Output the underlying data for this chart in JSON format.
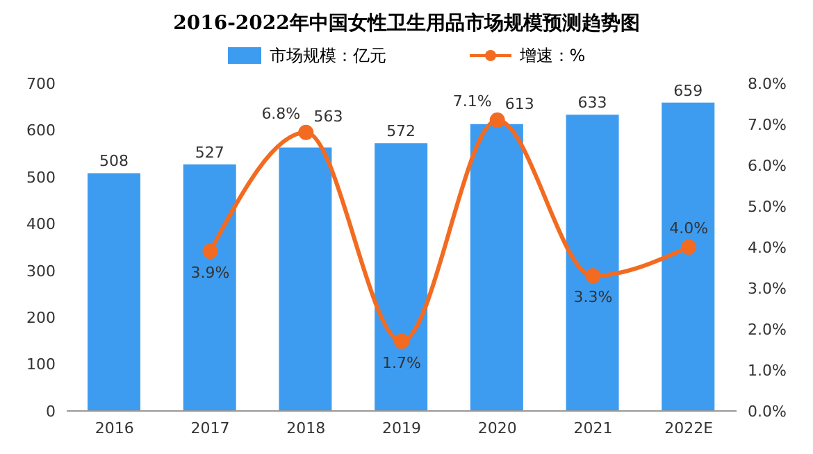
{
  "chart_data": {
    "type": "bar",
    "title": "2016-2022年中国女性卫生用品市场规模预测趋势图",
    "categories": [
      "2016",
      "2017",
      "2018",
      "2019",
      "2020",
      "2021",
      "2022E"
    ],
    "series": [
      {
        "name": "市场规模：亿元",
        "color": "#3d9cf0",
        "values": [
          508,
          527,
          563,
          572,
          613,
          633,
          659
        ],
        "value_labels": [
          "508",
          "527",
          "563",
          "572",
          "613",
          "633",
          "659"
        ]
      },
      {
        "name": "增速：%",
        "type": "line",
        "axis": "y2",
        "color": "#f26b21",
        "values": [
          null,
          3.9,
          6.8,
          1.7,
          7.1,
          3.3,
          4.0
        ],
        "value_labels": [
          null,
          "3.9%",
          "6.8%",
          "1.7%",
          "7.1%",
          "3.3%",
          "4.0%"
        ]
      }
    ],
    "ylim": [
      0,
      700
    ],
    "yticks": [
      0,
      100,
      200,
      300,
      400,
      500,
      600,
      700
    ],
    "y2lim": [
      0,
      8
    ],
    "y2ticks": [
      {
        "value": 0,
        "label": "0.0%"
      },
      {
        "value": 1,
        "label": "1.0%"
      },
      {
        "value": 2,
        "label": "2.0%"
      },
      {
        "value": 3,
        "label": "3.0%"
      },
      {
        "value": 4,
        "label": "4.0%"
      },
      {
        "value": 5,
        "label": "5.0%"
      },
      {
        "value": 6,
        "label": "6.0%"
      },
      {
        "value": 7,
        "label": "7.0%"
      },
      {
        "value": 8,
        "label": "8.0%"
      }
    ],
    "legend": "top",
    "marker": "circle"
  }
}
